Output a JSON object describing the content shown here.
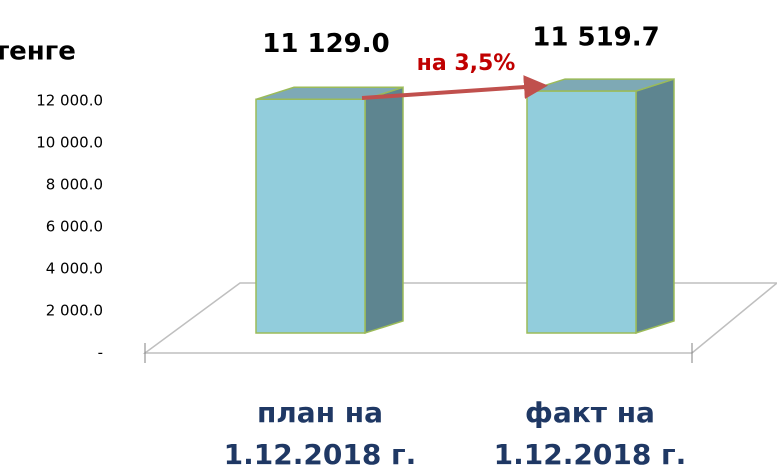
{
  "chart_data": {
    "type": "bar3d",
    "title": "тенге",
    "categories": [
      "план на 1.12.2018 г.",
      "факт на 1.12.2018 г."
    ],
    "values": [
      11129.0,
      11519.7
    ],
    "value_labels": [
      "11 129.0",
      "11 519.7"
    ],
    "color": "#92cddc",
    "ylim": [
      0,
      12000
    ],
    "yticks": [
      {
        "value": 0,
        "label": "-"
      },
      {
        "value": 2000,
        "label": "2 000.0"
      },
      {
        "value": 4000,
        "label": "4 000.0"
      },
      {
        "value": 6000,
        "label": "6 000.0"
      },
      {
        "value": 8000,
        "label": "8 000.0"
      },
      {
        "value": 10000,
        "label": "10 000.0"
      },
      {
        "value": 12000,
        "label": "12 000.0"
      }
    ],
    "annotation": "на 3,5%"
  }
}
